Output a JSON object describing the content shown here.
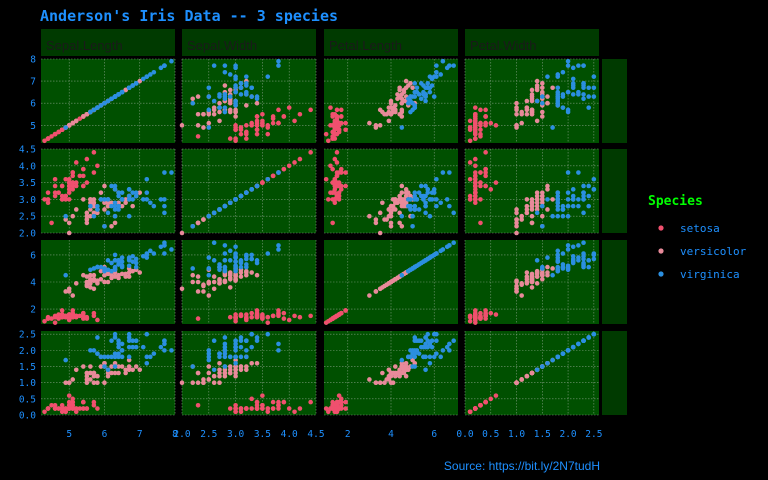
{
  "title": "Anderson's Iris Data -- 3 species",
  "caption": "Source: https://bit.ly/2N7tudH",
  "legend": {
    "title": "Species",
    "items": [
      {
        "label": "setosa",
        "color": "#f0506e"
      },
      {
        "label": "versicolor",
        "color": "#e88a9a"
      },
      {
        "label": "virginica",
        "color": "#2b8fe0"
      }
    ]
  },
  "colors": {
    "panel_bg": "#005000",
    "strip_bg": "#003a00",
    "grid": "#7a9a7a",
    "text": "#1e90ff"
  },
  "chart_data": {
    "type": "scatter",
    "layout": "scatterplot-matrix",
    "grid": true,
    "legend_position": "right",
    "variables": [
      {
        "key": "sl",
        "label": "Sepal Length",
        "strip_label": "Sepal.Length",
        "range": [
          4.2,
          8.0
        ],
        "ticks": [
          "5",
          "6",
          "7",
          "8"
        ],
        "tick_values": [
          5,
          6,
          7,
          8
        ],
        "yticks": [
          "5",
          "6",
          "7",
          "8"
        ],
        "ytick_values": [
          5,
          6,
          7,
          8
        ]
      },
      {
        "key": "sw",
        "label": "Sepal Width",
        "strip_label": "Sepal.Width",
        "range": [
          2.0,
          4.5
        ],
        "ticks": [
          "2.0",
          "2.5",
          "3.0",
          "3.5",
          "4.0",
          "4.5"
        ],
        "tick_values": [
          2.0,
          2.5,
          3.0,
          3.5,
          4.0,
          4.5
        ],
        "yticks": [
          "2.0",
          "2.5",
          "3.0",
          "3.5",
          "4.0",
          "4.5"
        ],
        "ytick_values": [
          2.0,
          2.5,
          3.0,
          3.5,
          4.0,
          4.5
        ]
      },
      {
        "key": "pl",
        "label": "Petal Length",
        "strip_label": "Petal.Length",
        "range": [
          0.9,
          7.1
        ],
        "ticks": [
          "2",
          "4",
          "6"
        ],
        "tick_values": [
          2,
          4,
          6
        ],
        "yticks": [
          "2",
          "4",
          "6"
        ],
        "ytick_values": [
          2,
          4,
          6
        ]
      },
      {
        "key": "pw",
        "label": "Petal Width",
        "strip_label": "Petal.Width",
        "range": [
          0.0,
          2.6
        ],
        "ticks": [
          "0.0",
          "0.5",
          "1.0",
          "1.5",
          "2.0",
          "2.5"
        ],
        "tick_values": [
          0.0,
          0.5,
          1.0,
          1.5,
          2.0,
          2.5
        ],
        "yticks": [
          "0.0",
          "0.5",
          "1.0",
          "1.5",
          "2.0",
          "2.5"
        ],
        "ytick_values": [
          0.0,
          0.5,
          1.0,
          1.5,
          2.0,
          2.5
        ]
      }
    ],
    "series": [
      {
        "name": "setosa",
        "color": "#f0506e",
        "points": [
          [
            5.1,
            3.5,
            1.4,
            0.2
          ],
          [
            4.9,
            3.0,
            1.4,
            0.2
          ],
          [
            4.7,
            3.2,
            1.3,
            0.2
          ],
          [
            4.6,
            3.1,
            1.5,
            0.2
          ],
          [
            5.0,
            3.6,
            1.4,
            0.2
          ],
          [
            5.4,
            3.9,
            1.7,
            0.4
          ],
          [
            4.6,
            3.4,
            1.4,
            0.3
          ],
          [
            5.0,
            3.4,
            1.5,
            0.2
          ],
          [
            4.4,
            2.9,
            1.4,
            0.2
          ],
          [
            4.9,
            3.1,
            1.5,
            0.1
          ],
          [
            5.4,
            3.7,
            1.5,
            0.2
          ],
          [
            4.8,
            3.4,
            1.6,
            0.2
          ],
          [
            4.8,
            3.0,
            1.4,
            0.1
          ],
          [
            4.3,
            3.0,
            1.1,
            0.1
          ],
          [
            5.8,
            4.0,
            1.2,
            0.2
          ],
          [
            5.7,
            4.4,
            1.5,
            0.4
          ],
          [
            5.4,
            3.9,
            1.3,
            0.4
          ],
          [
            5.1,
            3.5,
            1.4,
            0.3
          ],
          [
            5.7,
            3.8,
            1.7,
            0.3
          ],
          [
            5.1,
            3.8,
            1.5,
            0.3
          ],
          [
            5.4,
            3.4,
            1.7,
            0.2
          ],
          [
            5.1,
            3.7,
            1.5,
            0.4
          ],
          [
            4.6,
            3.6,
            1.0,
            0.2
          ],
          [
            5.1,
            3.3,
            1.7,
            0.5
          ],
          [
            4.8,
            3.4,
            1.9,
            0.2
          ],
          [
            5.0,
            3.0,
            1.6,
            0.2
          ],
          [
            5.0,
            3.4,
            1.6,
            0.4
          ],
          [
            5.2,
            3.5,
            1.5,
            0.2
          ],
          [
            5.2,
            3.4,
            1.4,
            0.2
          ],
          [
            4.7,
            3.2,
            1.6,
            0.2
          ],
          [
            4.8,
            3.1,
            1.6,
            0.2
          ],
          [
            5.4,
            3.4,
            1.5,
            0.4
          ],
          [
            5.2,
            4.1,
            1.5,
            0.1
          ],
          [
            5.5,
            4.2,
            1.4,
            0.2
          ],
          [
            4.9,
            3.1,
            1.5,
            0.2
          ],
          [
            5.0,
            3.2,
            1.2,
            0.2
          ],
          [
            5.5,
            3.5,
            1.3,
            0.2
          ],
          [
            4.9,
            3.6,
            1.4,
            0.1
          ],
          [
            4.4,
            3.0,
            1.3,
            0.2
          ],
          [
            5.1,
            3.4,
            1.5,
            0.2
          ],
          [
            5.0,
            3.5,
            1.3,
            0.3
          ],
          [
            4.5,
            2.3,
            1.3,
            0.3
          ],
          [
            4.4,
            3.2,
            1.3,
            0.2
          ],
          [
            5.0,
            3.5,
            1.6,
            0.6
          ],
          [
            5.1,
            3.8,
            1.9,
            0.4
          ],
          [
            4.8,
            3.0,
            1.4,
            0.3
          ],
          [
            5.1,
            3.8,
            1.6,
            0.2
          ],
          [
            4.6,
            3.2,
            1.4,
            0.2
          ],
          [
            5.3,
            3.7,
            1.5,
            0.2
          ],
          [
            5.0,
            3.3,
            1.4,
            0.2
          ]
        ]
      },
      {
        "name": "versicolor",
        "color": "#e88a9a",
        "points": [
          [
            7.0,
            3.2,
            4.7,
            1.4
          ],
          [
            6.4,
            3.2,
            4.5,
            1.5
          ],
          [
            6.9,
            3.1,
            4.9,
            1.5
          ],
          [
            5.5,
            2.3,
            4.0,
            1.3
          ],
          [
            6.5,
            2.8,
            4.6,
            1.5
          ],
          [
            5.7,
            2.8,
            4.5,
            1.3
          ],
          [
            6.3,
            3.3,
            4.7,
            1.6
          ],
          [
            4.9,
            2.4,
            3.3,
            1.0
          ],
          [
            6.6,
            2.9,
            4.6,
            1.3
          ],
          [
            5.2,
            2.7,
            3.9,
            1.4
          ],
          [
            5.0,
            2.0,
            3.5,
            1.0
          ],
          [
            5.9,
            3.0,
            4.2,
            1.5
          ],
          [
            6.0,
            2.2,
            4.0,
            1.0
          ],
          [
            6.1,
            2.9,
            4.7,
            1.4
          ],
          [
            5.6,
            2.9,
            3.6,
            1.3
          ],
          [
            6.7,
            3.1,
            4.4,
            1.4
          ],
          [
            5.6,
            3.0,
            4.5,
            1.5
          ],
          [
            5.8,
            2.7,
            4.1,
            1.0
          ],
          [
            6.2,
            2.2,
            4.5,
            1.5
          ],
          [
            5.6,
            2.5,
            3.9,
            1.1
          ],
          [
            5.9,
            3.2,
            4.8,
            1.8
          ],
          [
            6.1,
            2.8,
            4.0,
            1.3
          ],
          [
            6.3,
            2.5,
            4.9,
            1.5
          ],
          [
            6.1,
            2.8,
            4.7,
            1.2
          ],
          [
            6.4,
            2.9,
            4.3,
            1.3
          ],
          [
            6.6,
            3.0,
            4.4,
            1.4
          ],
          [
            6.8,
            2.8,
            4.8,
            1.4
          ],
          [
            6.7,
            3.0,
            5.0,
            1.7
          ],
          [
            6.0,
            2.9,
            4.5,
            1.5
          ],
          [
            5.7,
            2.6,
            3.5,
            1.0
          ],
          [
            5.5,
            2.4,
            3.8,
            1.1
          ],
          [
            5.5,
            2.4,
            3.7,
            1.0
          ],
          [
            5.8,
            2.7,
            3.9,
            1.2
          ],
          [
            6.0,
            2.7,
            5.1,
            1.6
          ],
          [
            5.4,
            3.0,
            4.5,
            1.5
          ],
          [
            6.0,
            3.4,
            4.5,
            1.6
          ],
          [
            6.7,
            3.1,
            4.7,
            1.5
          ],
          [
            6.3,
            2.3,
            4.4,
            1.3
          ],
          [
            5.6,
            3.0,
            4.1,
            1.3
          ],
          [
            5.5,
            2.5,
            4.0,
            1.3
          ],
          [
            5.5,
            2.6,
            4.4,
            1.2
          ],
          [
            6.1,
            3.0,
            4.6,
            1.4
          ],
          [
            5.8,
            2.6,
            4.0,
            1.2
          ],
          [
            5.0,
            2.3,
            3.3,
            1.0
          ],
          [
            5.6,
            2.7,
            4.2,
            1.3
          ],
          [
            5.7,
            3.0,
            4.2,
            1.2
          ],
          [
            5.7,
            2.9,
            4.2,
            1.3
          ],
          [
            6.2,
            2.9,
            4.3,
            1.3
          ],
          [
            5.1,
            2.5,
            3.0,
            1.1
          ],
          [
            5.7,
            2.8,
            4.1,
            1.3
          ]
        ]
      },
      {
        "name": "virginica",
        "color": "#2b8fe0",
        "points": [
          [
            6.3,
            3.3,
            6.0,
            2.5
          ],
          [
            5.8,
            2.7,
            5.1,
            1.9
          ],
          [
            7.1,
            3.0,
            5.9,
            2.1
          ],
          [
            6.3,
            2.9,
            5.6,
            1.8
          ],
          [
            6.5,
            3.0,
            5.8,
            2.2
          ],
          [
            7.6,
            3.0,
            6.6,
            2.1
          ],
          [
            4.9,
            2.5,
            4.5,
            1.7
          ],
          [
            7.3,
            2.9,
            6.3,
            1.8
          ],
          [
            6.7,
            2.5,
            5.8,
            1.8
          ],
          [
            7.2,
            3.6,
            6.1,
            2.5
          ],
          [
            6.5,
            3.2,
            5.1,
            2.0
          ],
          [
            6.4,
            2.7,
            5.3,
            1.9
          ],
          [
            6.8,
            3.0,
            5.5,
            2.1
          ],
          [
            5.7,
            2.5,
            5.0,
            2.0
          ],
          [
            5.8,
            2.8,
            5.1,
            2.4
          ],
          [
            6.4,
            3.2,
            5.3,
            2.3
          ],
          [
            6.5,
            3.0,
            5.5,
            1.8
          ],
          [
            7.7,
            3.8,
            6.7,
            2.2
          ],
          [
            7.7,
            2.6,
            6.9,
            2.3
          ],
          [
            6.0,
            2.2,
            5.0,
            1.5
          ],
          [
            6.9,
            3.2,
            5.7,
            2.3
          ],
          [
            5.6,
            2.8,
            4.9,
            2.0
          ],
          [
            7.7,
            2.8,
            6.7,
            2.0
          ],
          [
            6.3,
            2.7,
            4.9,
            1.8
          ],
          [
            6.7,
            3.3,
            5.7,
            2.1
          ],
          [
            7.2,
            3.2,
            6.0,
            1.8
          ],
          [
            6.2,
            2.8,
            4.8,
            1.8
          ],
          [
            6.1,
            3.0,
            4.9,
            1.8
          ],
          [
            6.4,
            2.8,
            5.6,
            2.1
          ],
          [
            7.2,
            3.0,
            5.8,
            1.6
          ],
          [
            7.4,
            2.8,
            6.1,
            1.9
          ],
          [
            7.9,
            3.8,
            6.4,
            2.0
          ],
          [
            6.4,
            2.8,
            5.6,
            2.2
          ],
          [
            6.3,
            2.8,
            5.1,
            1.5
          ],
          [
            6.1,
            2.6,
            5.6,
            1.4
          ],
          [
            7.7,
            3.0,
            6.1,
            2.3
          ],
          [
            6.3,
            3.4,
            5.6,
            2.4
          ],
          [
            6.4,
            3.1,
            5.5,
            1.8
          ],
          [
            6.0,
            3.0,
            4.8,
            1.8
          ],
          [
            6.9,
            3.1,
            5.4,
            2.1
          ],
          [
            6.7,
            3.1,
            5.6,
            2.4
          ],
          [
            6.9,
            3.1,
            5.1,
            2.3
          ],
          [
            5.8,
            2.7,
            5.1,
            1.9
          ],
          [
            6.8,
            3.2,
            5.9,
            2.3
          ],
          [
            6.7,
            3.3,
            5.7,
            2.5
          ],
          [
            6.7,
            3.0,
            5.2,
            2.3
          ],
          [
            6.3,
            2.5,
            5.0,
            1.9
          ],
          [
            6.5,
            3.0,
            5.2,
            2.0
          ],
          [
            6.2,
            3.4,
            5.4,
            2.3
          ],
          [
            5.9,
            3.0,
            5.1,
            1.8
          ]
        ]
      }
    ]
  }
}
